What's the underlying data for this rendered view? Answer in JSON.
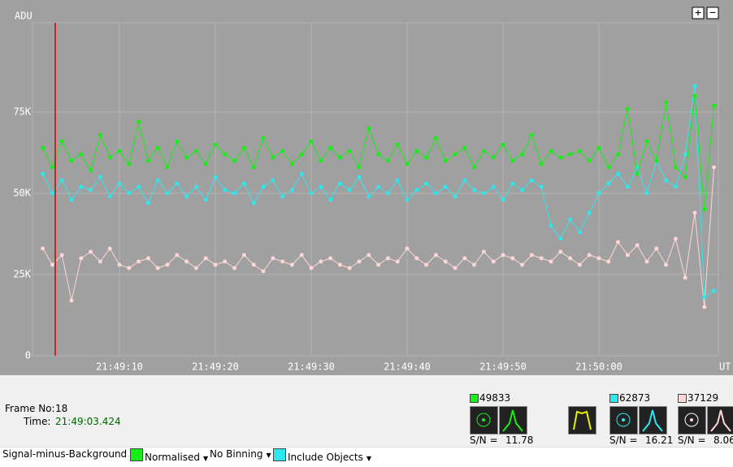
{
  "chart_data": {
    "type": "line",
    "y_label": "ADU",
    "x_label": "UT",
    "xlim": [
      0.93,
      72.46
    ],
    "ylim": [
      0,
      102500
    ],
    "yticks": [
      0,
      {
        "value": 25000,
        "label": "25K"
      },
      {
        "value": 50000,
        "label": "50K"
      },
      {
        "value": 75000,
        "label": "75K"
      }
    ],
    "xticks": [
      {
        "value": 10,
        "label": "21:49:10"
      },
      {
        "value": 20,
        "label": "21:49:20"
      },
      {
        "value": 30,
        "label": "21:49:30"
      },
      {
        "value": 40,
        "label": "21:49:40"
      },
      {
        "value": 50,
        "label": "21:49:50"
      },
      {
        "value": 60,
        "label": "21:50:00"
      }
    ],
    "grid": true,
    "x": [
      2,
      3,
      4,
      5,
      6,
      7,
      8,
      9,
      10,
      11,
      12,
      13,
      14,
      15,
      16,
      17,
      18,
      19,
      20,
      21,
      22,
      23,
      24,
      25,
      26,
      27,
      28,
      29,
      30,
      31,
      32,
      33,
      34,
      35,
      36,
      37,
      38,
      39,
      40,
      41,
      42,
      43,
      44,
      45,
      46,
      47,
      48,
      49,
      50,
      51,
      52,
      53,
      54,
      55,
      56,
      57,
      58,
      59,
      60,
      61,
      62,
      63,
      64,
      65,
      66,
      67,
      68,
      69,
      70,
      71,
      72
    ],
    "series": [
      {
        "color": "#ffd6d6",
        "values": [
          33000,
          28000,
          31000,
          17000,
          30000,
          32000,
          29000,
          33000,
          28000,
          27000,
          29000,
          30000,
          27000,
          28000,
          31000,
          29000,
          27000,
          30000,
          28000,
          29000,
          27000,
          31000,
          28000,
          26000,
          30000,
          29000,
          28000,
          31000,
          27000,
          29000,
          30000,
          28000,
          27000,
          29000,
          31000,
          28000,
          30000,
          29000,
          33000,
          30000,
          28000,
          31000,
          29000,
          27000,
          30000,
          28000,
          32000,
          29000,
          31000,
          30000,
          28000,
          31000,
          30000,
          29000,
          32000,
          30000,
          28000,
          31000,
          30000,
          29000,
          35000,
          31000,
          34000,
          29000,
          33000,
          28000,
          36000,
          24000,
          44000,
          15000,
          58000
        ]
      },
      {
        "color": "#2ee6ee",
        "values": [
          56000,
          50000,
          54000,
          48000,
          52000,
          51000,
          55000,
          49000,
          53000,
          50000,
          52000,
          47000,
          54000,
          50000,
          53000,
          49000,
          52000,
          48000,
          55000,
          51000,
          50000,
          53000,
          47000,
          52000,
          54000,
          49000,
          51000,
          56000,
          50000,
          52000,
          48000,
          53000,
          51000,
          55000,
          49000,
          52000,
          50000,
          54000,
          48000,
          51000,
          53000,
          50000,
          52000,
          49000,
          54000,
          51000,
          50000,
          52000,
          48000,
          53000,
          51000,
          54000,
          52000,
          40000,
          36000,
          42000,
          38000,
          44000,
          50000,
          53000,
          56000,
          52000,
          58000,
          50000,
          60000,
          54000,
          52000,
          62000,
          83000,
          18000,
          20000
        ]
      },
      {
        "color": "#16ee16",
        "values": [
          64000,
          58000,
          66000,
          60000,
          62000,
          57000,
          68000,
          61000,
          63000,
          59000,
          72000,
          60000,
          64000,
          58000,
          66000,
          61000,
          63000,
          59000,
          65000,
          62000,
          60000,
          64000,
          58000,
          67000,
          61000,
          63000,
          59000,
          62000,
          66000,
          60000,
          64000,
          61000,
          63000,
          58000,
          70000,
          62000,
          60000,
          65000,
          59000,
          63000,
          61000,
          67000,
          60000,
          62000,
          64000,
          58000,
          63000,
          61000,
          65000,
          60000,
          62000,
          68000,
          59000,
          63000,
          61000,
          62000,
          63000,
          60000,
          64000,
          58000,
          62000,
          76000,
          56000,
          66000,
          60000,
          78000,
          58000,
          55000,
          80000,
          45000,
          77000
        ]
      }
    ]
  },
  "ui": {
    "zoom_in": "+",
    "zoom_out": "−",
    "frame_label": "Frame No:",
    "frame_no": "18",
    "time_label": "Time:",
    "time": "21:49:03.424",
    "objects": [
      {
        "value": "49833",
        "sn_label": "S/N =",
        "sn": "11.78"
      },
      {
        "value": "62873",
        "sn_label": "S/N =",
        "sn": "16.21"
      },
      {
        "value": "37129",
        "sn_label": "S/N =",
        "sn": "8.06"
      }
    ],
    "toolbar": [
      "Signal-minus-Background",
      "Normalised",
      "No Binning",
      "Include Objects"
    ]
  }
}
